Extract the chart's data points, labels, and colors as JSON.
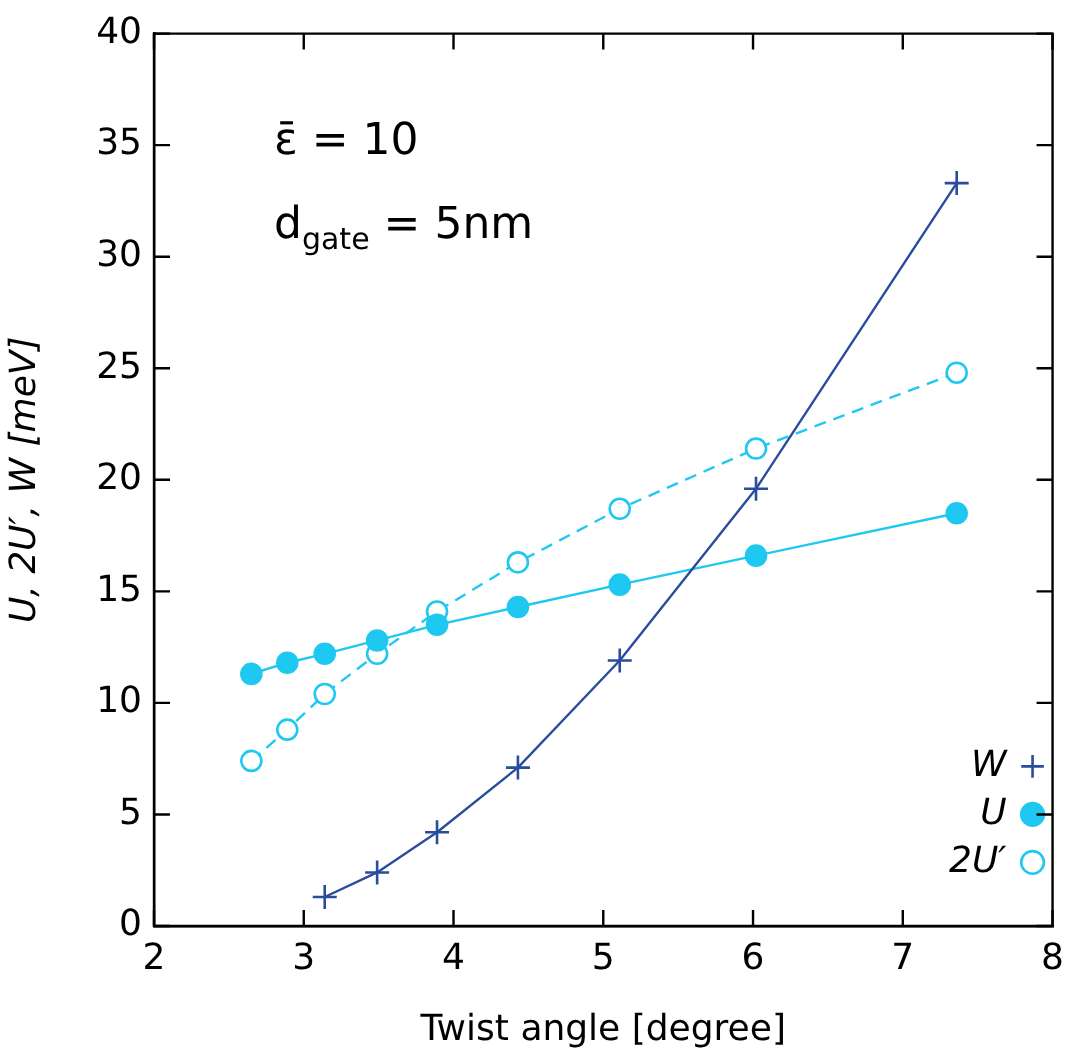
{
  "chart_data": {
    "type": "line",
    "xlabel": "Twist angle [degree]",
    "ylabel": "U, 2U′, W [meV]",
    "annotations": [
      "ε̄ = 10",
      "d$_{gate}$ = 5nm"
    ],
    "xlim": [
      2,
      8
    ],
    "xticks": [
      2,
      3,
      4,
      5,
      6,
      7,
      8
    ],
    "ylim": [
      0,
      40
    ],
    "yticks": [
      0,
      5,
      10,
      15,
      20,
      25,
      30,
      35,
      40
    ],
    "grid": false,
    "legend": "bottom right",
    "series": [
      {
        "name": "W",
        "color": "#2a4c9c",
        "marker": "cross",
        "line_style": "solid",
        "x": [
          3.14,
          3.49,
          3.89,
          4.43,
          5.11,
          6.02,
          7.36
        ],
        "values": [
          1.3,
          2.4,
          4.2,
          7.1,
          11.9,
          19.6,
          33.3
        ]
      },
      {
        "name": "U",
        "color": "#1ec8f0",
        "marker": "circle",
        "line_style": "solid",
        "x": [
          2.65,
          2.89,
          3.14,
          3.49,
          3.89,
          4.43,
          5.11,
          6.02,
          7.36
        ],
        "values": [
          11.3,
          11.8,
          12.2,
          12.8,
          13.5,
          14.3,
          15.3,
          16.6,
          18.5
        ]
      },
      {
        "name": "2U′",
        "color": "#1ec8f0",
        "marker": "open circle",
        "line_style": "dashed",
        "x": [
          2.65,
          2.89,
          3.14,
          3.49,
          3.89,
          4.43,
          5.11,
          6.02,
          7.36
        ],
        "values": [
          7.4,
          8.8,
          10.4,
          12.2,
          14.1,
          16.3,
          18.7,
          21.4,
          24.8
        ]
      }
    ]
  }
}
